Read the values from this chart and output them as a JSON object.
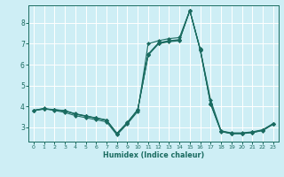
{
  "title": "",
  "xlabel": "Humidex (Indice chaleur)",
  "ylabel": "",
  "background_color": "#ceeef5",
  "line_color": "#1a6b60",
  "grid_color": "#ffffff",
  "xlim": [
    -0.5,
    23.5
  ],
  "ylim": [
    2.3,
    8.85
  ],
  "yticks": [
    3,
    4,
    5,
    6,
    7,
    8
  ],
  "xticks": [
    0,
    1,
    2,
    3,
    4,
    5,
    6,
    7,
    8,
    9,
    10,
    11,
    12,
    13,
    14,
    15,
    16,
    17,
    18,
    19,
    20,
    21,
    22,
    23
  ],
  "series": [
    [
      3.8,
      3.9,
      3.8,
      3.7,
      3.55,
      3.45,
      3.35,
      3.25,
      2.62,
      3.15,
      3.75,
      7.0,
      7.15,
      7.25,
      7.3,
      8.6,
      6.75,
      4.3,
      2.82,
      2.72,
      2.72,
      2.77,
      2.87,
      3.17
    ],
    [
      3.8,
      3.87,
      3.82,
      3.77,
      3.62,
      3.52,
      3.42,
      3.32,
      2.68,
      3.2,
      3.82,
      6.45,
      7.0,
      7.1,
      7.15,
      8.6,
      6.7,
      4.1,
      2.78,
      2.68,
      2.68,
      2.73,
      2.83,
      3.13
    ],
    [
      3.8,
      3.88,
      3.84,
      3.79,
      3.64,
      3.54,
      3.44,
      3.34,
      2.7,
      3.22,
      3.84,
      6.5,
      7.05,
      7.15,
      7.2,
      8.6,
      6.73,
      4.15,
      2.8,
      2.7,
      2.7,
      2.75,
      2.85,
      3.15
    ],
    [
      3.79,
      3.86,
      3.83,
      3.78,
      3.63,
      3.53,
      3.43,
      3.33,
      2.69,
      3.21,
      3.83,
      6.48,
      7.03,
      7.13,
      7.18,
      8.6,
      6.72,
      4.13,
      2.79,
      2.69,
      2.69,
      2.74,
      2.84,
      3.14
    ]
  ]
}
